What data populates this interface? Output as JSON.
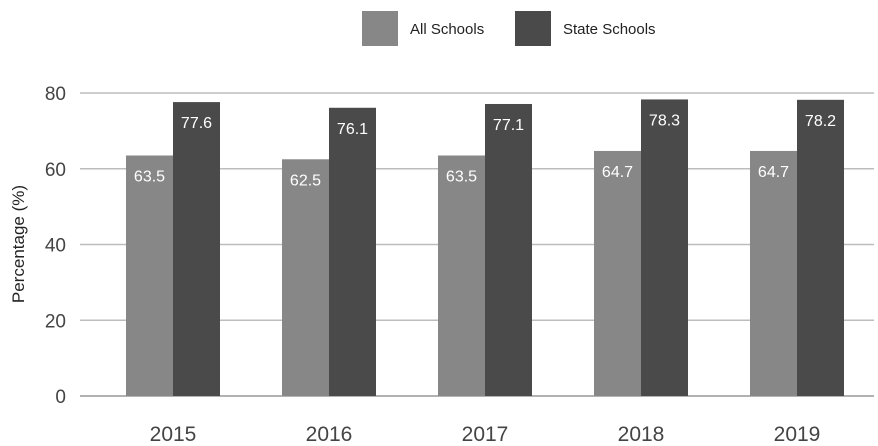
{
  "chart_data": {
    "type": "bar",
    "categories": [
      "2015",
      "2016",
      "2017",
      "2018",
      "2019"
    ],
    "series": [
      {
        "name": "All Schools",
        "values": [
          63.5,
          62.5,
          63.5,
          64.7,
          64.7
        ],
        "labels": [
          "63.5",
          "62.5",
          "63.5",
          "64.7",
          "64.7"
        ],
        "color": "#878787"
      },
      {
        "name": "State Schools",
        "values": [
          77.6,
          76.1,
          77.1,
          78.3,
          78.2
        ],
        "labels": [
          "77.6",
          "76.1",
          "77.1",
          "78.3",
          "78.2"
        ],
        "color": "#4a4a4a"
      }
    ],
    "ylabel": "Percentage (%)",
    "xlabel": "",
    "ylim": [
      0,
      80
    ],
    "yticks": [
      0,
      20,
      40,
      60,
      80
    ],
    "ytick_labels": [
      "0",
      "20",
      "40",
      "60",
      "80"
    ],
    "grid": true,
    "legend_position": "top-center"
  }
}
